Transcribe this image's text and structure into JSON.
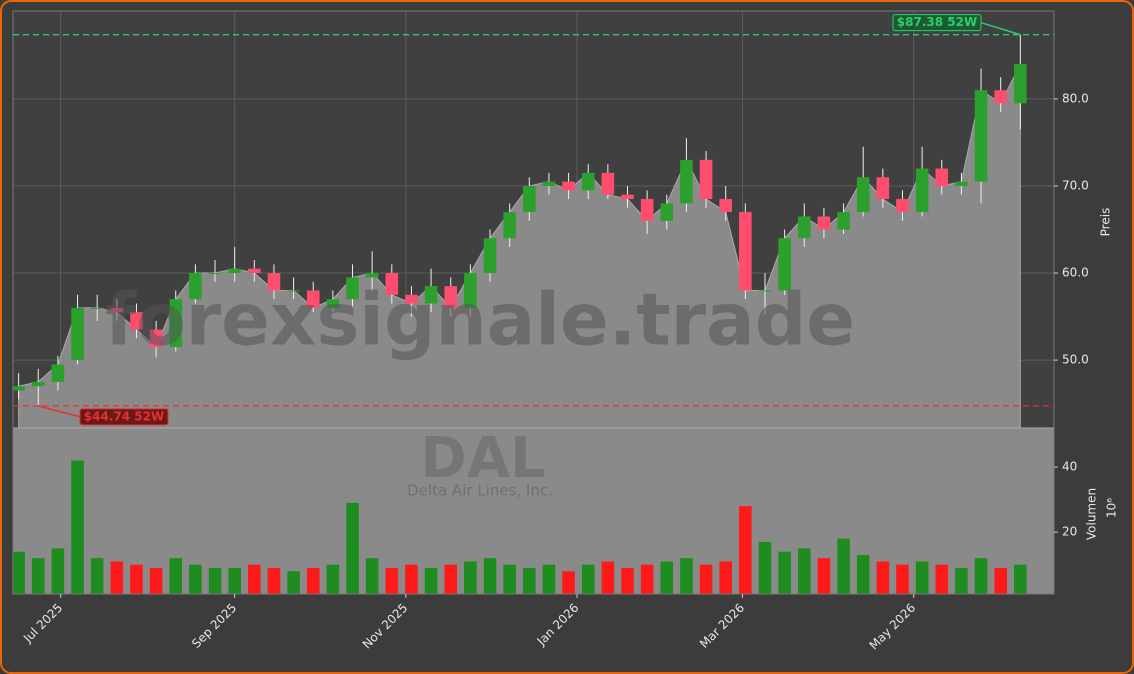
{
  "chart_data": {
    "type": "candlestick",
    "watermark": "forexsignale.trade",
    "symbol": "DAL",
    "company": "Delta Air Lines, Inc.",
    "ylabel": "Preis",
    "volume_label": "Volumen",
    "volume_exponent": "10⁶",
    "x": [
      "2025-06-16",
      "2025-06-23",
      "2025-06-30",
      "2025-07-07",
      "2025-07-14",
      "2025-07-21",
      "2025-07-28",
      "2025-08-04",
      "2025-08-11",
      "2025-08-18",
      "2025-08-25",
      "2025-09-01",
      "2025-09-08",
      "2025-09-15",
      "2025-09-22",
      "2025-09-29",
      "2025-10-06",
      "2025-10-13",
      "2025-10-20",
      "2025-10-27",
      "2025-11-03",
      "2025-11-10",
      "2025-11-17",
      "2025-11-24",
      "2025-12-01",
      "2025-12-08",
      "2025-12-15",
      "2025-12-22",
      "2025-12-29",
      "2026-01-05",
      "2026-01-12",
      "2026-01-19",
      "2026-01-26",
      "2026-02-02",
      "2026-02-09",
      "2026-02-16",
      "2026-02-23",
      "2026-03-02",
      "2026-03-09",
      "2026-03-16",
      "2026-03-23",
      "2026-03-30",
      "2026-04-06",
      "2026-04-13",
      "2026-04-20",
      "2026-04-27",
      "2026-05-04",
      "2026-05-11",
      "2026-05-18",
      "2026-05-25",
      "2026-06-01",
      "2026-06-08"
    ],
    "open": [
      46.5,
      47,
      47.5,
      50,
      56,
      56,
      55.5,
      53.5,
      51.5,
      57,
      60,
      60,
      60.5,
      60,
      58,
      58,
      56,
      57,
      59.5,
      60,
      57.5,
      56.5,
      58.5,
      56,
      60,
      64,
      67,
      70,
      70.5,
      69.5,
      71.5,
      69,
      68.5,
      66,
      68,
      73,
      68.5,
      67,
      58,
      58,
      64,
      66.5,
      65,
      67,
      71,
      68.5,
      67,
      72,
      70,
      70.5,
      81,
      79.5
    ],
    "high": [
      48.5,
      49,
      50.5,
      57.5,
      57.5,
      57,
      56.5,
      54.5,
      58,
      61,
      61.5,
      63,
      61.5,
      61,
      59.5,
      59,
      58,
      61,
      62.5,
      61,
      58.5,
      60.5,
      59.5,
      61,
      65,
      68,
      71,
      71.5,
      71.5,
      72.5,
      72.5,
      70,
      69.5,
      69,
      75.5,
      74,
      70,
      68,
      60,
      65,
      68,
      67.5,
      68,
      74.5,
      72,
      69.5,
      74.5,
      73,
      71.5,
      83.5,
      82.5,
      87.38
    ],
    "low": [
      45.5,
      44.74,
      46.5,
      49.5,
      54.5,
      54.5,
      52.5,
      50.3,
      51,
      56.5,
      59,
      59,
      59,
      57,
      57,
      55.5,
      55.5,
      56,
      58,
      56.5,
      55,
      55.5,
      55,
      55,
      59,
      63,
      66,
      69,
      68.5,
      68.5,
      68.5,
      67.5,
      64.5,
      65,
      67,
      67.5,
      66,
      57,
      55.2,
      57.5,
      63,
      64,
      64.5,
      66.5,
      67.5,
      66,
      66.5,
      69,
      69,
      68,
      78.5,
      76.5
    ],
    "close": [
      47,
      47.5,
      49.5,
      56,
      56,
      55.5,
      53.5,
      51.5,
      57,
      60,
      60,
      60.5,
      60,
      58,
      58,
      56,
      57,
      59.5,
      60,
      57.5,
      56.5,
      58.5,
      56,
      60,
      64,
      67,
      70,
      70.5,
      69.5,
      71.5,
      69,
      68.5,
      66,
      68,
      73,
      68.5,
      67,
      58,
      58,
      64,
      66.5,
      65,
      67,
      71,
      68.5,
      67,
      72,
      70,
      70.5,
      81,
      79.5,
      84
    ],
    "volume": [
      14,
      12,
      15,
      42,
      12,
      11,
      10,
      9,
      12,
      10,
      9,
      9,
      10,
      9,
      8,
      9,
      10,
      29,
      12,
      9,
      10,
      9,
      10,
      11,
      12,
      10,
      9,
      10,
      8,
      10,
      11,
      9,
      10,
      11,
      12,
      10,
      11,
      28,
      17,
      14,
      15,
      12,
      18,
      13,
      11,
      10,
      11,
      10,
      9,
      12,
      9,
      10
    ],
    "up_color": "#2ca02c",
    "down_color": "#ff4d6d",
    "volume_up_color": "#1e8c1e",
    "volume_down_color": "#ff1a1a",
    "area_color": "#8a8a8a",
    "xlim": [
      "2025-06-14",
      "2026-06-20"
    ],
    "xticks": [
      {
        "value": "2025-07-01",
        "label": "Jul 2025"
      },
      {
        "value": "2025-09-01",
        "label": "Sep 2025"
      },
      {
        "value": "2025-11-01",
        "label": "Nov 2025"
      },
      {
        "value": "2026-01-01",
        "label": "Jan 2026"
      },
      {
        "value": "2026-03-01",
        "label": "Mar 2026"
      },
      {
        "value": "2026-05-01",
        "label": "May 2026"
      }
    ],
    "ylim": [
      42.2,
      90.1
    ],
    "yticks": [
      {
        "value": 50,
        "label": "50.0"
      },
      {
        "value": 60,
        "label": "60.0"
      },
      {
        "value": 70,
        "label": "70.0"
      },
      {
        "value": 80,
        "label": "80.0"
      }
    ],
    "volume_ylim": [
      1,
      52
    ],
    "volume_ticks": [
      20,
      40
    ],
    "grid": true,
    "annotations": [
      {
        "text": "$87.38 52W",
        "value": 87.38,
        "color": "#2ecc71"
      },
      {
        "text": "$44.74 52W",
        "value": 44.74,
        "color": "#e83030"
      }
    ]
  }
}
